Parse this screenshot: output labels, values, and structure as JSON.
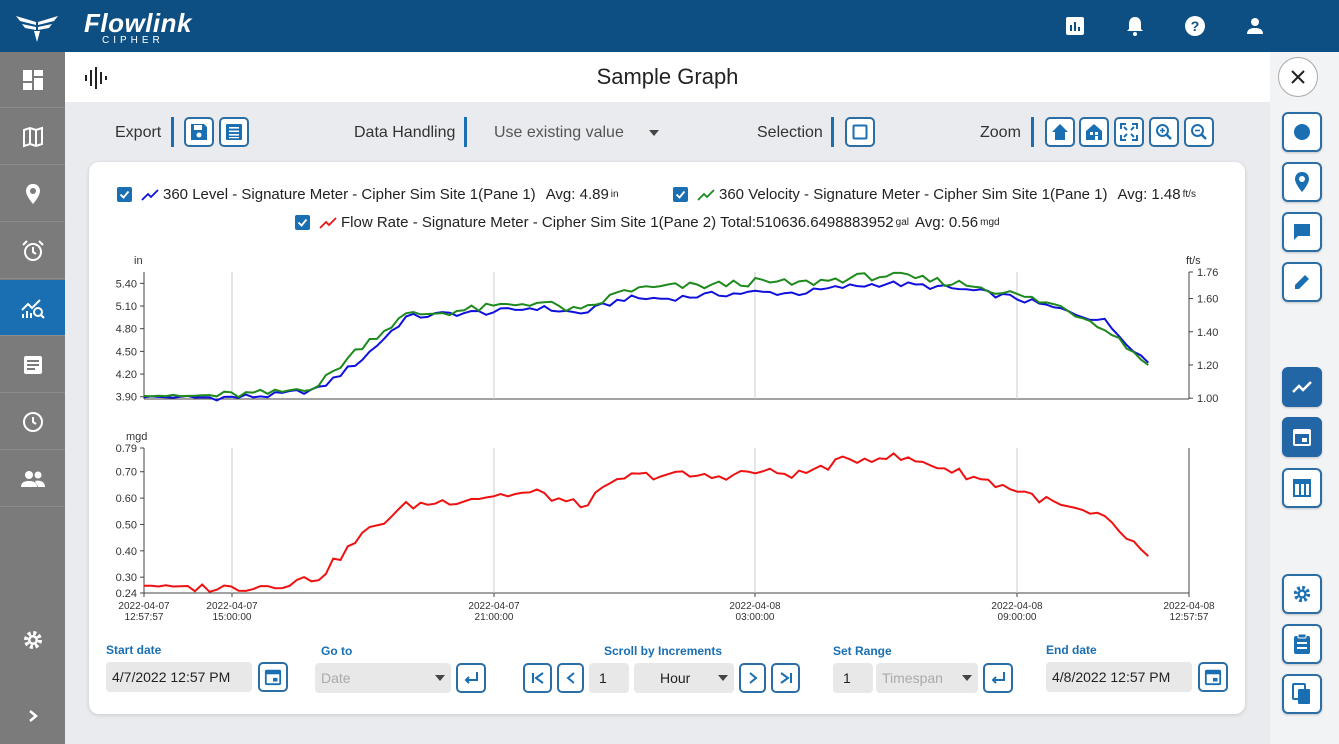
{
  "header": {
    "brand": "Flowlink",
    "brand_sub": "CIPHER",
    "icons": [
      "report-icon",
      "bell-icon",
      "help-icon",
      "user-icon"
    ]
  },
  "sidebar": {
    "items": [
      "dashboard-icon",
      "map-icon",
      "location-pin-icon",
      "alarm-clock-icon",
      "analytics-icon",
      "document-icon",
      "history-clock-icon",
      "users-icon"
    ],
    "active": "analytics-icon",
    "bottom": [
      "gear-icon",
      "chevron-right-icon"
    ]
  },
  "page": {
    "title": "Sample Graph"
  },
  "toolbar": {
    "export_label": "Export",
    "data_handling_label": "Data Handling",
    "data_handling_value": "Use existing value",
    "selection_label": "Selection",
    "zoom_label": "Zoom"
  },
  "legend": [
    {
      "label": "360 Level - Signature Meter - Cipher Sim Site 1(Pane 1)",
      "stat": "Avg: 4.89",
      "unit": "in",
      "color": "#1010dd"
    },
    {
      "label": "360 Velocity - Signature Meter - Cipher Sim Site 1(Pane 1)",
      "stat": "Avg: 1.48",
      "unit": "ft/s",
      "color": "#1e8a1e"
    },
    {
      "label": "Flow Rate - Signature Meter - Cipher Sim Site 1(Pane 2)",
      "stat_total": "Total:510636.6498883952",
      "total_unit": "gal",
      "stat": "Avg: 0.56",
      "unit": "mgd",
      "color": "#ee1111"
    }
  ],
  "chart_data": [
    {
      "type": "line",
      "left_unit": "in",
      "right_unit": "ft/s",
      "left_ticks": [
        "5.40",
        "5.10",
        "4.80",
        "4.50",
        "4.20",
        "3.90"
      ],
      "right_ticks": [
        "1.76",
        "1.60",
        "1.40",
        "1.20",
        "1.00"
      ],
      "ylim": [
        3.87,
        5.55
      ],
      "y2lim": [
        0.995,
        1.76
      ],
      "x_hours": [
        0,
        1,
        2,
        3,
        4,
        5,
        6,
        7,
        8,
        9,
        10,
        11,
        12,
        13,
        14,
        15,
        16,
        17,
        18,
        19,
        20,
        21,
        22,
        23
      ],
      "series": [
        {
          "name": "360 Level - Signature Meter - Cipher Sim Site 1(Pane 1)",
          "values": [
            3.9,
            3.89,
            3.89,
            3.92,
            4.0,
            4.4,
            4.95,
            5.0,
            5.02,
            5.08,
            5.0,
            5.2,
            5.2,
            5.25,
            5.28,
            5.27,
            5.35,
            5.4,
            5.36,
            5.3,
            5.2,
            5.05,
            4.9,
            4.35
          ]
        },
        {
          "name": "360 Velocity - Signature Meter - Cipher Sim Site 1(Pane 1)",
          "values": [
            1.02,
            1.01,
            1.02,
            1.03,
            1.08,
            1.32,
            1.5,
            1.52,
            1.55,
            1.58,
            1.52,
            1.65,
            1.67,
            1.68,
            1.7,
            1.69,
            1.72,
            1.74,
            1.71,
            1.68,
            1.62,
            1.55,
            1.43,
            1.2
          ]
        }
      ]
    },
    {
      "type": "line",
      "left_unit": "mgd",
      "left_ticks": [
        "0.79",
        "0.70",
        "0.60",
        "0.50",
        "0.40",
        "0.30",
        "0.24"
      ],
      "ylim": [
        0.24,
        0.79
      ],
      "x_hours": [
        0,
        1,
        2,
        3,
        4,
        5,
        6,
        7,
        8,
        9,
        10,
        11,
        12,
        13,
        14,
        15,
        16,
        17,
        18,
        19,
        20,
        21,
        22,
        23
      ],
      "series": [
        {
          "name": "Flow Rate - Signature Meter - Cipher Sim Site 1(Pane 2)",
          "values": [
            0.27,
            0.26,
            0.26,
            0.27,
            0.3,
            0.46,
            0.57,
            0.59,
            0.61,
            0.62,
            0.57,
            0.68,
            0.69,
            0.68,
            0.7,
            0.69,
            0.74,
            0.76,
            0.73,
            0.68,
            0.63,
            0.57,
            0.52,
            0.38
          ]
        }
      ]
    }
  ],
  "x_axis": [
    {
      "date": "2022-04-07",
      "time": "12:57:57"
    },
    {
      "date": "2022-04-07",
      "time": "15:00:00"
    },
    {
      "date": "2022-04-07",
      "time": "21:00:00"
    },
    {
      "date": "2022-04-08",
      "time": "03:00:00"
    },
    {
      "date": "2022-04-08",
      "time": "09:00:00"
    },
    {
      "date": "2022-04-08",
      "time": "12:57:57"
    }
  ],
  "controls": {
    "start_date_label": "Start date",
    "start_date_value": "4/7/2022 12:57 PM",
    "goto_label": "Go to",
    "goto_placeholder": "Date",
    "scroll_label": "Scroll by Increments",
    "scroll_count": "1",
    "scroll_unit": "Hour",
    "set_range_label": "Set Range",
    "range_count": "1",
    "range_placeholder": "Timespan",
    "end_date_label": "End date",
    "end_date_value": "4/8/2022 12:57 PM"
  }
}
